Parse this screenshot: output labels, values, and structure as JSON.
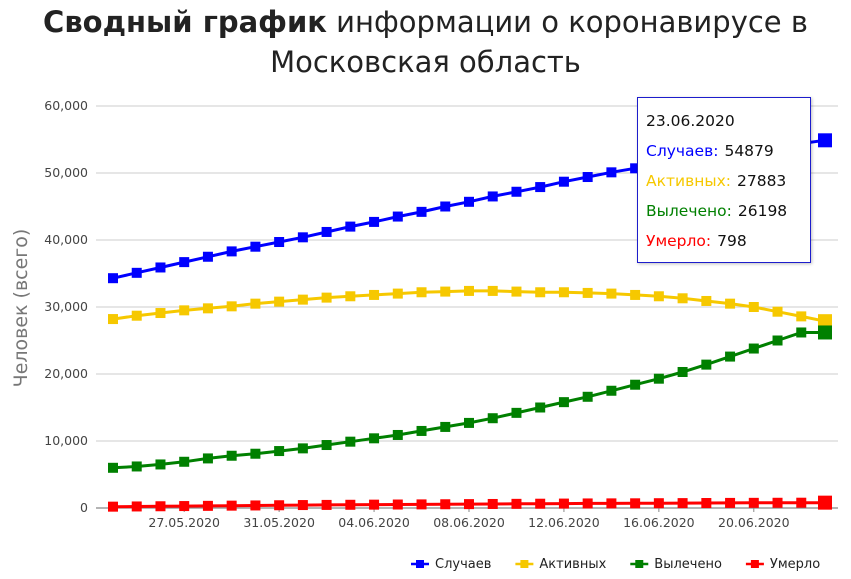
{
  "title": {
    "bold": "Сводный график",
    "rest_line1": " информации о коронавирусе в",
    "line2": "Московская область"
  },
  "tooltip": {
    "date": "23.06.2020",
    "rows": [
      {
        "label": "Случаев:",
        "value": "54879",
        "color": "#0000ff"
      },
      {
        "label": "Активных:",
        "value": "27883",
        "color": "#f6c800"
      },
      {
        "label": "Вылечено:",
        "value": "26198",
        "color": "#008000"
      },
      {
        "label": "Умерло:",
        "value": "798",
        "color": "#ff0000"
      }
    ]
  },
  "chart_data": {
    "type": "line",
    "ylabel": "Человек (всего)",
    "xlabel": "",
    "ylim": [
      0,
      60000
    ],
    "yticks": [
      "0",
      "10,000",
      "20,000",
      "30,000",
      "40,000",
      "50,000",
      "60,000"
    ],
    "grid": true,
    "legend_position": "bottom-right",
    "x": [
      "24.05.2020",
      "25.05.2020",
      "26.05.2020",
      "27.05.2020",
      "28.05.2020",
      "29.05.2020",
      "30.05.2020",
      "31.05.2020",
      "01.06.2020",
      "02.06.2020",
      "03.06.2020",
      "04.06.2020",
      "05.06.2020",
      "06.06.2020",
      "07.06.2020",
      "08.06.2020",
      "09.06.2020",
      "10.06.2020",
      "11.06.2020",
      "12.06.2020",
      "13.06.2020",
      "14.06.2020",
      "15.06.2020",
      "16.06.2020",
      "17.06.2020",
      "18.06.2020",
      "19.06.2020",
      "20.06.2020",
      "21.06.2020",
      "22.06.2020",
      "23.06.2020"
    ],
    "xtick_labels": [
      "27.05.2020",
      "31.05.2020",
      "04.06.2020",
      "08.06.2020",
      "12.06.2020",
      "16.06.2020",
      "20.06.2020"
    ],
    "series": [
      {
        "name": "Случаев",
        "color": "#0000ff",
        "values": [
          34300,
          35100,
          35900,
          36700,
          37500,
          38300,
          39000,
          39700,
          40400,
          41200,
          42000,
          42700,
          43500,
          44200,
          45000,
          45700,
          46500,
          47200,
          47900,
          48700,
          49400,
          50100,
          50700,
          51400,
          52000,
          52600,
          53100,
          53600,
          54000,
          54400,
          54879
        ]
      },
      {
        "name": "Активных",
        "color": "#f6c800",
        "values": [
          28200,
          28700,
          29100,
          29500,
          29800,
          30100,
          30500,
          30800,
          31100,
          31400,
          31600,
          31800,
          32000,
          32200,
          32300,
          32400,
          32400,
          32300,
          32200,
          32200,
          32100,
          32000,
          31800,
          31600,
          31300,
          30900,
          30500,
          30000,
          29300,
          28600,
          27883
        ]
      },
      {
        "name": "Вылечено",
        "color": "#008000",
        "values": [
          6000,
          6200,
          6500,
          6900,
          7400,
          7800,
          8100,
          8500,
          8900,
          9400,
          9900,
          10400,
          10900,
          11500,
          12100,
          12700,
          13400,
          14200,
          15000,
          15800,
          16600,
          17500,
          18400,
          19300,
          20300,
          21400,
          22600,
          23800,
          25000,
          26198,
          26198
        ]
      },
      {
        "name": "Умерло",
        "color": "#ff0000",
        "values": [
          200,
          230,
          260,
          290,
          320,
          350,
          380,
          410,
          440,
          460,
          480,
          500,
          520,
          540,
          560,
          580,
          600,
          620,
          640,
          660,
          680,
          690,
          700,
          715,
          730,
          745,
          760,
          770,
          780,
          790,
          798
        ]
      }
    ]
  }
}
